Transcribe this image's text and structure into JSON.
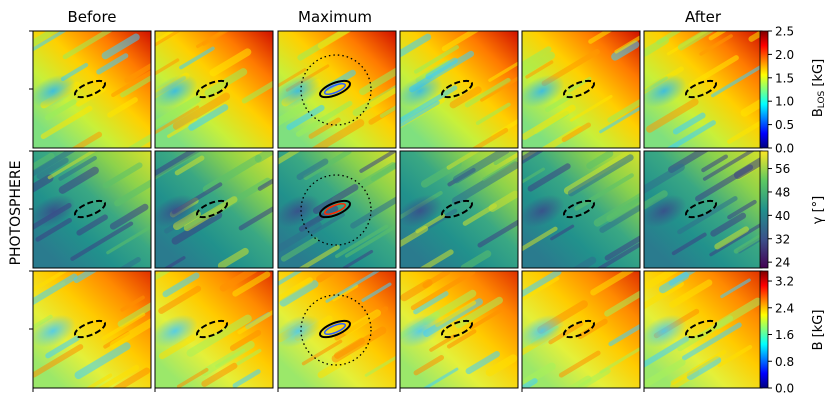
{
  "figure": {
    "row_label": "PHOTOSPHERE",
    "column_titles": [
      "Before",
      "",
      "Maximum",
      "",
      "",
      "After"
    ],
    "colorbars": [
      {
        "label_html": "B<tspan font-size='9' dy='2'>LOS</tspan><tspan dy='-2'> [kG]</tspan>",
        "label_plain": "B_LOS [kG]",
        "min": 0.0,
        "max": 2.5,
        "ticks": [
          "2.5",
          "2.0",
          "1.5",
          "1.0",
          "0.5",
          "0.0"
        ],
        "tick_values": [
          2.5,
          2.0,
          1.5,
          1.0,
          0.5,
          0.0
        ],
        "colormap": "jet"
      },
      {
        "label_plain": "γ [°]",
        "min": 22,
        "max": 62,
        "ticks": [
          "56",
          "48",
          "40",
          "32",
          "24"
        ],
        "tick_values": [
          56,
          48,
          40,
          32,
          24
        ],
        "colormap": "viridis"
      },
      {
        "label_plain": "B [kG]",
        "min": 0.0,
        "max": 3.5,
        "ticks": [
          "3.2",
          "2.4",
          "1.6",
          "0.8",
          "0.0"
        ],
        "tick_values": [
          3.2,
          2.4,
          1.6,
          0.8,
          0.0
        ],
        "colormap": "jet"
      }
    ]
  },
  "colors": {
    "jet": [
      "#00007f",
      "#0000ff",
      "#007fff",
      "#00ffff",
      "#7fff7f",
      "#ffff00",
      "#ff7f00",
      "#ff0000",
      "#7f0000"
    ],
    "viridis": [
      "#440154",
      "#3b528b",
      "#21918c",
      "#5ec962",
      "#fde725"
    ],
    "contour": "#000000"
  }
}
